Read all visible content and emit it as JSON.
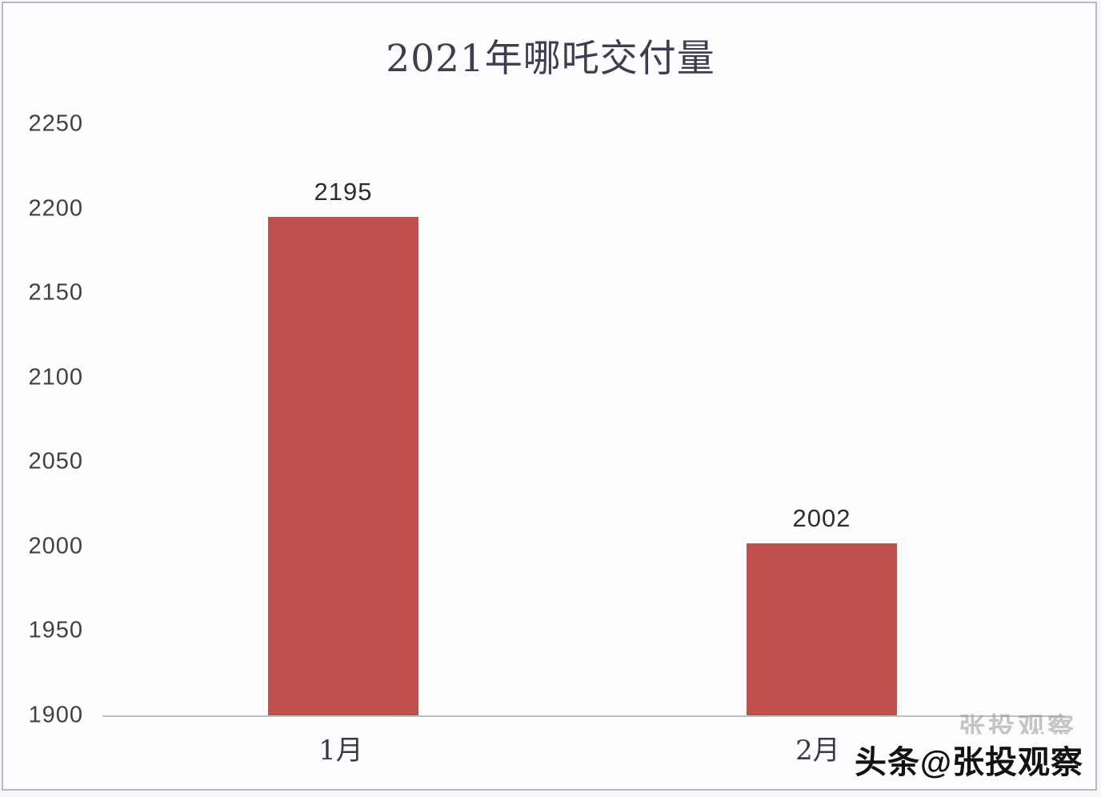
{
  "chart_data": {
    "type": "bar",
    "title": "2021年哪吒交付量",
    "categories": [
      "1月",
      "2月"
    ],
    "values": [
      2195,
      2002
    ],
    "ylim": [
      1900,
      2250
    ],
    "ytick_step": 50,
    "yticks": [
      2250,
      2200,
      2150,
      2100,
      2050,
      2000,
      1950,
      1900
    ],
    "xlabel": "",
    "ylabel": "",
    "grid": false,
    "legend": "none",
    "data_labels_shown": true,
    "bar_color": "#c0504d",
    "axis_line_color": "#bfbfbf"
  },
  "watermark": {
    "bold": "头条@张投观察",
    "ghost": "张投观察"
  }
}
